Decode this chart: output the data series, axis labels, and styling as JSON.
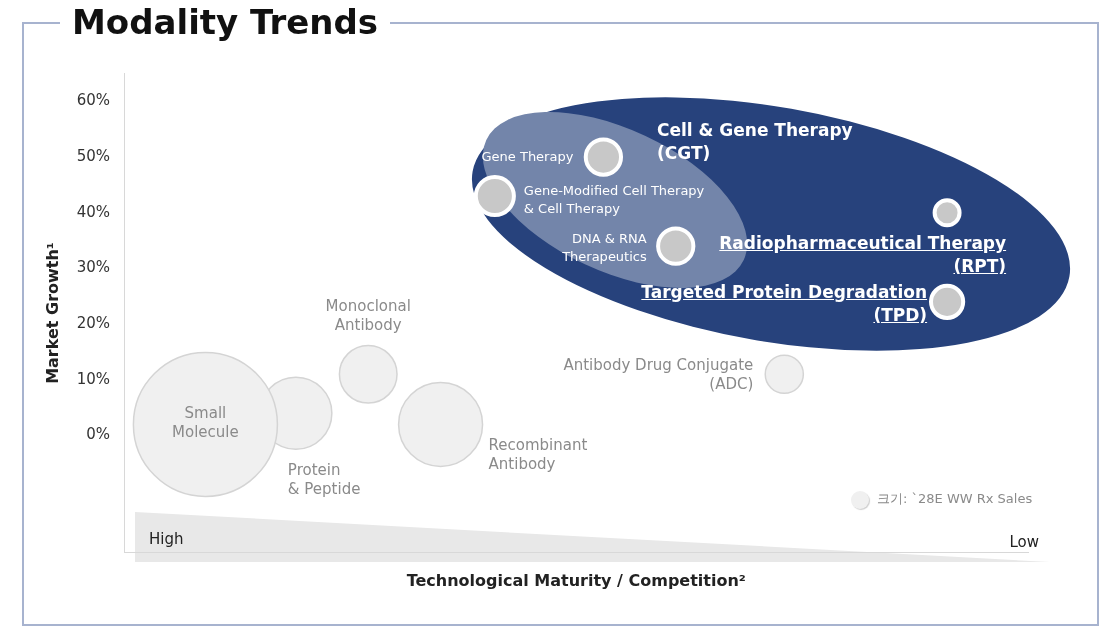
{
  "chart_data": {
    "type": "bubble",
    "title": "Modality Trends",
    "xlabel": "Technological Maturity / Competition²",
    "ylabel": "Market Growth¹",
    "tick_labels": "y",
    "categories": [
      null,
      null,
      null,
      null,
      null,
      null,
      null,
      null,
      null,
      null,
      null,
      null,
      null,
      null,
      null,
      null,
      null,
      null,
      null,
      null,
      null,
      null,
      null,
      null,
      null,
      null,
      null,
      null,
      null,
      null,
      null,
      null,
      null,
      null,
      null,
      null,
      null,
      null,
      null,
      null,
      null,
      null,
      null,
      null,
      null,
      null,
      null,
      null,
      null,
      null
    ],
    "ylim": [
      -21,
      65
    ],
    "yticks": [
      {
        "value": 0,
        "label": "0%"
      },
      {
        "value": 10,
        "label": "10%"
      },
      {
        "value": 20,
        "label": "20%"
      },
      {
        "value": 30,
        "label": "30%"
      },
      {
        "value": 40,
        "label": "40%"
      },
      {
        "value": 50,
        "label": "50%"
      },
      {
        "value": 60,
        "label": "60%"
      }
    ],
    "grid": false,
    "series": [
      {
        "name": "Small Molecule",
        "color": "#f0f0f0",
        "values": [
          null,
          null,
          null,
          null,
          2,
          null,
          null,
          null,
          null,
          null,
          null,
          null,
          null,
          null,
          null,
          null,
          null,
          null,
          null,
          null,
          null,
          null,
          null,
          null,
          null,
          null,
          null,
          null,
          null,
          null,
          null,
          null,
          null,
          null,
          null,
          null,
          null,
          null,
          null,
          null,
          null,
          null,
          null,
          null,
          null,
          null,
          null,
          null,
          null,
          null
        ],
        "sizes": [
          null,
          null,
          null,
          null,
          1,
          null,
          null,
          null,
          null,
          null,
          null,
          null,
          null,
          null,
          null,
          null,
          null,
          null,
          null,
          null,
          null,
          null,
          null,
          null,
          null,
          null,
          null,
          null,
          null,
          null,
          null,
          null,
          null,
          null,
          null,
          null,
          null,
          null,
          null,
          null,
          null,
          null,
          null,
          null,
          null,
          null,
          null,
          null,
          null,
          null
        ]
      },
      {
        "name": "Protein & Peptide",
        "color": "#f0f0f0",
        "values": [
          null,
          null,
          null,
          null,
          null,
          null,
          null,
          null,
          null,
          4,
          null,
          null,
          null,
          null,
          null,
          null,
          null,
          null,
          null,
          null,
          null,
          null,
          null,
          null,
          null,
          null,
          null,
          null,
          null,
          null,
          null,
          null,
          null,
          null,
          null,
          null,
          null,
          null,
          null,
          null,
          null,
          null,
          null,
          null,
          null,
          null,
          null,
          null,
          null,
          null
        ],
        "sizes": [
          null,
          null,
          null,
          null,
          null,
          null,
          null,
          null,
          null,
          0.25,
          null,
          null,
          null,
          null,
          null,
          null,
          null,
          null,
          null,
          null,
          null,
          null,
          null,
          null,
          null,
          null,
          null,
          null,
          null,
          null,
          null,
          null,
          null,
          null,
          null,
          null,
          null,
          null,
          null,
          null,
          null,
          null,
          null,
          null,
          null,
          null,
          null,
          null,
          null,
          null
        ]
      },
      {
        "name": "Monoclonal Antibody",
        "color": "#f0f0f0",
        "values": [
          null,
          null,
          null,
          null,
          null,
          null,
          null,
          null,
          null,
          null,
          null,
          null,
          null,
          11,
          null,
          null,
          null,
          null,
          null,
          null,
          null,
          null,
          null,
          null,
          null,
          null,
          null,
          null,
          null,
          null,
          null,
          null,
          null,
          null,
          null,
          null,
          null,
          null,
          null,
          null,
          null,
          null,
          null,
          null,
          null,
          null,
          null,
          null,
          null,
          null
        ],
        "sizes": [
          null,
          null,
          null,
          null,
          null,
          null,
          null,
          null,
          null,
          null,
          null,
          null,
          null,
          0.16,
          null,
          null,
          null,
          null,
          null,
          null,
          null,
          null,
          null,
          null,
          null,
          null,
          null,
          null,
          null,
          null,
          null,
          null,
          null,
          null,
          null,
          null,
          null,
          null,
          null,
          null,
          null,
          null,
          null,
          null,
          null,
          null,
          null,
          null,
          null,
          null
        ]
      },
      {
        "name": "Recombinant Antibody",
        "color": "#f0f0f0",
        "values": [
          null,
          null,
          null,
          null,
          null,
          null,
          null,
          null,
          null,
          null,
          null,
          null,
          null,
          null,
          null,
          null,
          null,
          2,
          null,
          null,
          null,
          null,
          null,
          null,
          null,
          null,
          null,
          null,
          null,
          null,
          null,
          null,
          null,
          null,
          null,
          null,
          null,
          null,
          null,
          null,
          null,
          null,
          null,
          null,
          null,
          null,
          null,
          null,
          null,
          null
        ],
        "sizes": [
          null,
          null,
          null,
          null,
          null,
          null,
          null,
          null,
          null,
          null,
          null,
          null,
          null,
          null,
          null,
          null,
          null,
          0.34,
          null,
          null,
          null,
          null,
          null,
          null,
          null,
          null,
          null,
          null,
          null,
          null,
          null,
          null,
          null,
          null,
          null,
          null,
          null,
          null,
          null,
          null,
          null,
          null,
          null,
          null,
          null,
          null,
          null,
          null,
          null,
          null
        ]
      },
      {
        "name": "Antibody Drug Conjugate (ADC)",
        "color": "#f0f0f0",
        "values": [
          null,
          null,
          null,
          null,
          null,
          null,
          null,
          null,
          null,
          null,
          null,
          null,
          null,
          null,
          null,
          null,
          null,
          null,
          null,
          null,
          null,
          null,
          null,
          null,
          null,
          null,
          null,
          null,
          null,
          null,
          null,
          null,
          null,
          null,
          null,
          null,
          11,
          null,
          null,
          null,
          null,
          null,
          null,
          null,
          null,
          null,
          null,
          null,
          null,
          null
        ],
        "sizes": [
          null,
          null,
          null,
          null,
          null,
          null,
          null,
          null,
          null,
          null,
          null,
          null,
          null,
          null,
          null,
          null,
          null,
          null,
          null,
          null,
          null,
          null,
          null,
          null,
          null,
          null,
          null,
          null,
          null,
          null,
          null,
          null,
          null,
          null,
          null,
          null,
          0.07,
          null,
          null,
          null,
          null,
          null,
          null,
          null,
          null,
          null,
          null,
          null,
          null,
          null
        ]
      },
      {
        "name": "Gene Therapy",
        "color": "#c8c8c8",
        "values": [
          null,
          null,
          null,
          null,
          null,
          null,
          null,
          null,
          null,
          null,
          null,
          null,
          null,
          null,
          null,
          null,
          null,
          null,
          null,
          null,
          null,
          null,
          null,
          null,
          null,
          null,
          50,
          null,
          null,
          null,
          null,
          null,
          null,
          null,
          null,
          null,
          null,
          null,
          null,
          null,
          null,
          null,
          null,
          null,
          null,
          null,
          null,
          null,
          null,
          null
        ],
        "sizes": [
          null,
          null,
          null,
          null,
          null,
          null,
          null,
          null,
          null,
          null,
          null,
          null,
          null,
          null,
          null,
          null,
          null,
          null,
          null,
          null,
          null,
          null,
          null,
          null,
          null,
          null,
          0.06,
          null,
          null,
          null,
          null,
          null,
          null,
          null,
          null,
          null,
          null,
          null,
          null,
          null,
          null,
          null,
          null,
          null,
          null,
          null,
          null,
          null,
          null,
          null
        ]
      },
      {
        "name": "Gene-Modified Cell Therapy & Cell Therapy",
        "color": "#c8c8c8",
        "values": [
          null,
          null,
          null,
          null,
          null,
          null,
          null,
          null,
          null,
          null,
          null,
          null,
          null,
          null,
          null,
          null,
          null,
          null,
          null,
          null,
          43,
          null,
          null,
          null,
          null,
          null,
          null,
          null,
          null,
          null,
          null,
          null,
          null,
          null,
          null,
          null,
          null,
          null,
          null,
          null,
          null,
          null,
          null,
          null,
          null,
          null,
          null,
          null,
          null,
          null
        ],
        "sizes": [
          null,
          null,
          null,
          null,
          null,
          null,
          null,
          null,
          null,
          null,
          null,
          null,
          null,
          null,
          null,
          null,
          null,
          null,
          null,
          null,
          0.07,
          null,
          null,
          null,
          null,
          null,
          null,
          null,
          null,
          null,
          null,
          null,
          null,
          null,
          null,
          null,
          null,
          null,
          null,
          null,
          null,
          null,
          null,
          null,
          null,
          null,
          null,
          null,
          null,
          null
        ]
      },
      {
        "name": "DNA & RNA Therapeutics",
        "color": "#c8c8c8",
        "values": [
          null,
          null,
          null,
          null,
          null,
          null,
          null,
          null,
          null,
          null,
          null,
          null,
          null,
          null,
          null,
          null,
          null,
          null,
          null,
          null,
          null,
          null,
          null,
          null,
          null,
          null,
          null,
          null,
          null,
          null,
          34,
          null,
          null,
          null,
          null,
          null,
          null,
          null,
          null,
          null,
          null,
          null,
          null,
          null,
          null,
          null,
          null,
          null,
          null,
          null
        ],
        "sizes": [
          null,
          null,
          null,
          null,
          null,
          null,
          null,
          null,
          null,
          null,
          null,
          null,
          null,
          null,
          null,
          null,
          null,
          null,
          null,
          null,
          null,
          null,
          null,
          null,
          null,
          null,
          null,
          null,
          null,
          null,
          0.06,
          null,
          null,
          null,
          null,
          null,
          null,
          null,
          null,
          null,
          null,
          null,
          null,
          null,
          null,
          null,
          null,
          null,
          null,
          null
        ]
      },
      {
        "name": "Radiopharmaceutical Therapy (RPT)",
        "color": "#c8c8c8",
        "values": [
          null,
          null,
          null,
          null,
          null,
          null,
          null,
          null,
          null,
          null,
          null,
          null,
          null,
          null,
          null,
          null,
          null,
          null,
          null,
          null,
          null,
          null,
          null,
          null,
          null,
          null,
          null,
          null,
          null,
          null,
          null,
          null,
          null,
          null,
          null,
          null,
          null,
          null,
          null,
          null,
          null,
          null,
          null,
          null,
          null,
          40,
          null,
          null,
          null,
          null
        ],
        "sizes": [
          null,
          null,
          null,
          null,
          null,
          null,
          null,
          null,
          null,
          null,
          null,
          null,
          null,
          null,
          null,
          null,
          null,
          null,
          null,
          null,
          null,
          null,
          null,
          null,
          null,
          null,
          null,
          null,
          null,
          null,
          null,
          null,
          null,
          null,
          null,
          null,
          null,
          null,
          null,
          null,
          null,
          null,
          null,
          null,
          null,
          0.03,
          null,
          null,
          null,
          null
        ]
      },
      {
        "name": "Targeted Protein Degradation (TPD)",
        "color": "#c8c8c8",
        "values": [
          null,
          null,
          null,
          null,
          null,
          null,
          null,
          null,
          null,
          null,
          null,
          null,
          null,
          null,
          null,
          null,
          null,
          null,
          null,
          null,
          null,
          null,
          null,
          null,
          null,
          null,
          null,
          null,
          null,
          null,
          null,
          null,
          null,
          null,
          null,
          null,
          null,
          null,
          null,
          null,
          null,
          null,
          null,
          null,
          null,
          24,
          null,
          null,
          null,
          null
        ],
        "sizes": [
          null,
          null,
          null,
          null,
          null,
          null,
          null,
          null,
          null,
          null,
          null,
          null,
          null,
          null,
          null,
          null,
          null,
          null,
          null,
          null,
          null,
          null,
          null,
          null,
          null,
          null,
          null,
          null,
          null,
          null,
          null,
          null,
          null,
          null,
          null,
          null,
          null,
          null,
          null,
          null,
          null,
          null,
          null,
          null,
          null,
          0.05,
          null,
          null,
          null,
          null
        ]
      }
    ],
    "annotations": [
      "Cell & Gene Therapy (CGT)",
      "크기: `28E WW Rx Sales",
      "High",
      "Low"
    ]
  }
}
